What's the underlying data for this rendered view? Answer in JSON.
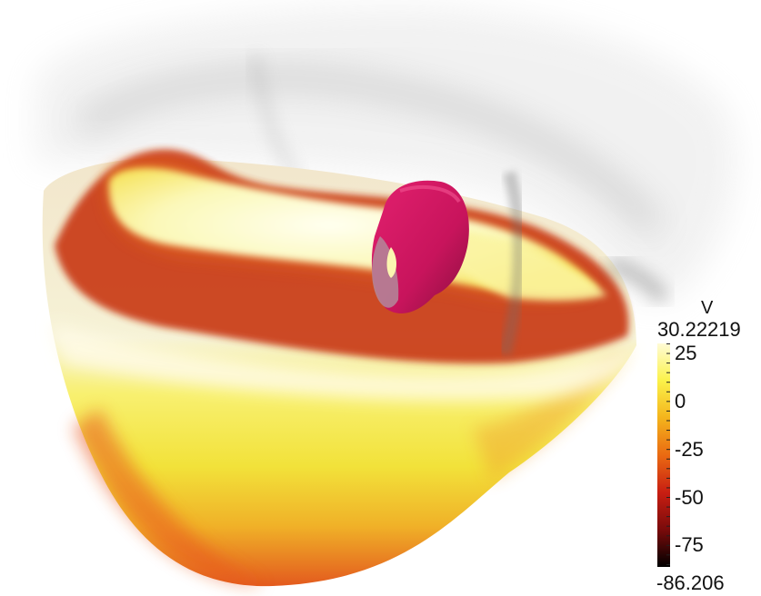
{
  "scene": {
    "description_free": true,
    "colors": {
      "background": "#ffffff",
      "isosurface": "#d81b6b",
      "shell_gray": "#9a9a9a"
    }
  },
  "colorbar": {
    "title": "V",
    "max_label": "30.22219",
    "min_label": "-86.206",
    "ticks": [
      {
        "value": 25,
        "label": "25"
      },
      {
        "value": 0,
        "label": "0"
      },
      {
        "value": -25,
        "label": "-25"
      },
      {
        "value": -50,
        "label": "-50"
      },
      {
        "value": -75,
        "label": "-75"
      }
    ],
    "range": [
      -86.206,
      30.22219
    ],
    "gradient": [
      "#000000",
      "#7a0b0b",
      "#c81e12",
      "#ea6a12",
      "#f4b41c",
      "#fbf24a",
      "#fffbd6"
    ]
  }
}
